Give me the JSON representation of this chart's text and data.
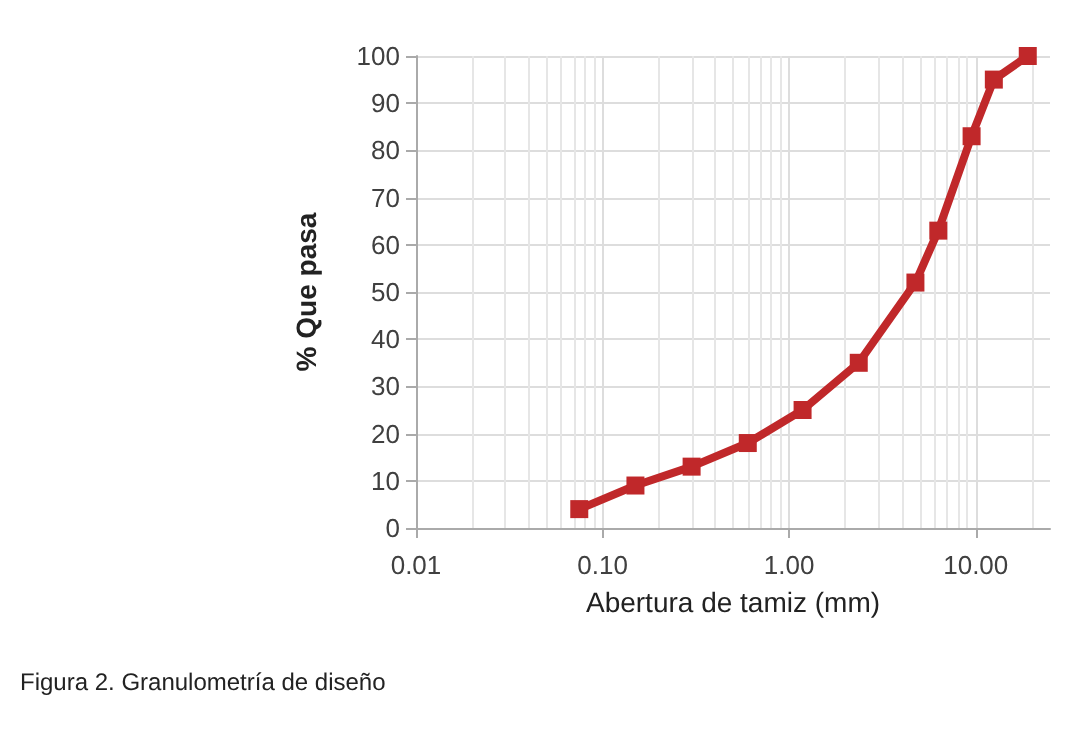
{
  "chart_data": {
    "type": "line",
    "xlabel": "Abertura de tamiz (mm)",
    "ylabel": "% Que pasa",
    "log": "x",
    "grid": true,
    "marker": "square",
    "line_style": "solid",
    "x": [
      0.075,
      0.15,
      0.3,
      0.6,
      1.18,
      2.36,
      4.75,
      6.3,
      9.5,
      12.5,
      19
    ],
    "series": [
      {
        "color": "#c0282a",
        "values": [
          4,
          9,
          13,
          18,
          25,
          35,
          52,
          63,
          83,
          95,
          100
        ]
      }
    ],
    "xlim": [
      0.01,
      25
    ],
    "xticks": [
      {
        "value": 0.01,
        "label": "0.01"
      },
      {
        "value": 0.1,
        "label": "0.10"
      },
      {
        "value": 1,
        "label": "1.00"
      },
      {
        "value": 10,
        "label": "10.00"
      }
    ],
    "ylim": [
      0,
      100
    ],
    "yticks": [
      0,
      10,
      20,
      30,
      40,
      50,
      60,
      70,
      80,
      90,
      100
    ],
    "annotations": [
      "Figura 2. Granulometría de diseño"
    ]
  }
}
